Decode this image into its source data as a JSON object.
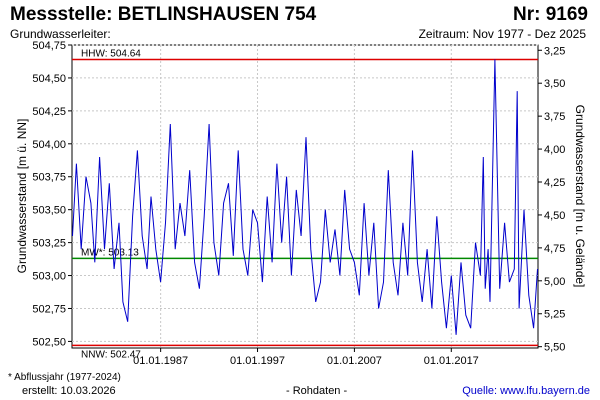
{
  "header": {
    "title_left": "Messstelle: BETLINSHAUSEN 754",
    "title_right": "Nr: 9169",
    "sub_left": "Grundwasserleiter:",
    "sub_right": "Zeitraum: Nov 1977 - Dez 2025"
  },
  "footer": {
    "note": "* Abflussjahr (1977-2024)",
    "created": "erstellt:  10.03.2026",
    "raw": "- Rohdaten -",
    "source": "Quelle:  www.lfu.bayern.de"
  },
  "colors": {
    "series": "#0000cc",
    "extreme_line": "#dd0000",
    "mean_line": "#008800",
    "grid": "#c8c8c8"
  },
  "chart_data": {
    "type": "line",
    "ylabel": "Grundwasserstand [m ü. NN]",
    "ylabel_right": "Grundwasserstand [m u. Gelände]",
    "ylim": [
      502.45,
      504.75
    ],
    "yticks_left": [
      "504,75",
      "504,50",
      "504,25",
      "504,00",
      "503,75",
      "503,50",
      "503,25",
      "503,00",
      "502,75",
      "502,50"
    ],
    "yticks_right": [
      "3,25",
      "3,50",
      "3,75",
      "4,00",
      "4,25",
      "4,50",
      "4,75",
      "5,00",
      "5,25",
      "5,50"
    ],
    "xlim": [
      1977.85,
      2025.95
    ],
    "xticks": [
      "01.01.1987",
      "01.01.1997",
      "01.01.2007",
      "01.01.2017"
    ],
    "grid": true,
    "reference_lines": [
      {
        "label": "HHW: 504.64",
        "value": 504.64
      },
      {
        "label": "MW*: 503.13",
        "value": 503.13
      },
      {
        "label": "NNW: 502.47",
        "value": 502.47
      }
    ],
    "series": [
      {
        "x": [
          1977.9,
          1978.3,
          1978.8,
          1979.3,
          1979.8,
          1980.2,
          1980.7,
          1981.2,
          1981.7,
          1982.2,
          1982.7,
          1983.1,
          1983.6,
          1984.1,
          1984.6,
          1985.1,
          1985.6,
          1986.0,
          1986.5,
          1987.0,
          1987.5,
          1988.0,
          1988.5,
          1989.0,
          1989.5,
          1990.0,
          1990.5,
          1991.0,
          1991.5,
          1992.0,
          1992.5,
          1993.0,
          1993.5,
          1994.0,
          1994.5,
          1995.0,
          1995.5,
          1996.0,
          1996.5,
          1997.0,
          1997.5,
          1998.0,
          1998.5,
          1999.0,
          1999.5,
          2000.0,
          2000.5,
          2001.0,
          2001.5,
          2002.0,
          2002.5,
          2003.0,
          2003.5,
          2004.0,
          2004.5,
          2005.0,
          2005.5,
          2006.0,
          2006.5,
          2007.0,
          2007.5,
          2008.0,
          2008.5,
          2009.0,
          2009.5,
          2010.0,
          2010.5,
          2011.0,
          2011.5,
          2012.0,
          2012.5,
          2013.0,
          2013.5,
          2014.0,
          2014.5,
          2015.0,
          2015.5,
          2016.0,
          2016.5,
          2017.0,
          2017.5,
          2018.0,
          2018.5,
          2019.0,
          2019.5,
          2020.0,
          2020.3,
          2020.5,
          2020.8,
          2021.0,
          2021.5,
          2022.0,
          2022.5,
          2023.0,
          2023.5,
          2023.8,
          2024.0,
          2024.5,
          2025.0,
          2025.5,
          2025.9
        ],
        "y": [
          503.3,
          503.85,
          503.2,
          503.75,
          503.55,
          503.1,
          503.9,
          503.2,
          503.7,
          503.05,
          503.4,
          502.8,
          502.65,
          503.45,
          503.95,
          503.3,
          503.05,
          503.6,
          503.2,
          502.95,
          503.4,
          504.15,
          503.2,
          503.55,
          503.3,
          503.8,
          503.1,
          502.9,
          503.45,
          504.15,
          503.25,
          503.0,
          503.55,
          503.7,
          503.15,
          503.95,
          503.2,
          503.0,
          503.5,
          503.4,
          502.95,
          503.6,
          503.1,
          503.85,
          503.25,
          503.75,
          503.0,
          503.65,
          503.3,
          504.05,
          503.2,
          502.8,
          502.95,
          503.5,
          503.1,
          503.35,
          503.0,
          503.65,
          503.2,
          503.1,
          502.85,
          503.55,
          503.0,
          503.4,
          502.75,
          502.95,
          503.8,
          503.1,
          502.85,
          503.4,
          503.0,
          503.95,
          503.1,
          502.8,
          503.2,
          502.75,
          503.45,
          502.95,
          502.6,
          503.0,
          502.55,
          503.1,
          502.7,
          502.6,
          503.25,
          503.0,
          503.9,
          502.9,
          503.2,
          502.8,
          504.64,
          502.9,
          503.4,
          502.95,
          503.05,
          504.4,
          502.75,
          503.5,
          502.85,
          502.6,
          503.05
        ]
      }
    ]
  }
}
